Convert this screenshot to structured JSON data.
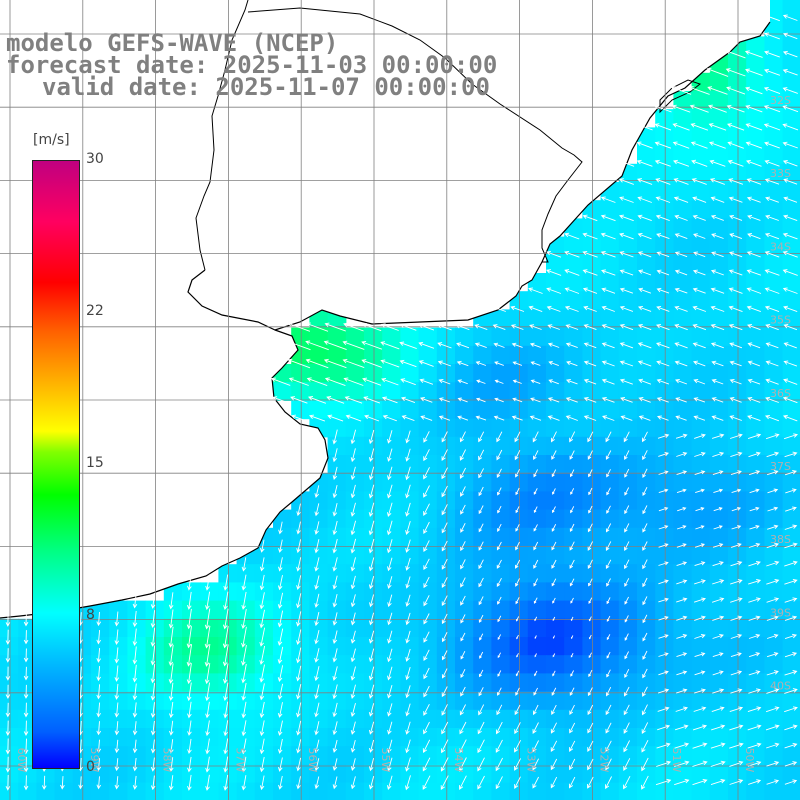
{
  "title": {
    "line1": "modelo GEFS-WAVE (NCEP)",
    "line2": "forecast date: 2025-11-03 00:00:00",
    "line3": "valid date: 2025-11-07 00:00:00"
  },
  "colorbar": {
    "unit": "[m/s]",
    "min": 0,
    "max": 30,
    "ticks": [
      "30",
      "22",
      "15",
      "8",
      "0"
    ]
  },
  "grid": {
    "lat_labels": [
      "32S",
      "33S",
      "34S",
      "35S",
      "36S",
      "37S",
      "38S",
      "39S",
      "40S"
    ],
    "lon_labels": [
      "60W",
      "59W",
      "58W",
      "57W",
      "56W",
      "55W",
      "54W",
      "53W",
      "52W",
      "51W",
      "50W"
    ]
  },
  "colors": {
    "land": "#ffffff",
    "coast": "#000000",
    "grid": "#808080",
    "arrows": "#ffffff"
  }
}
